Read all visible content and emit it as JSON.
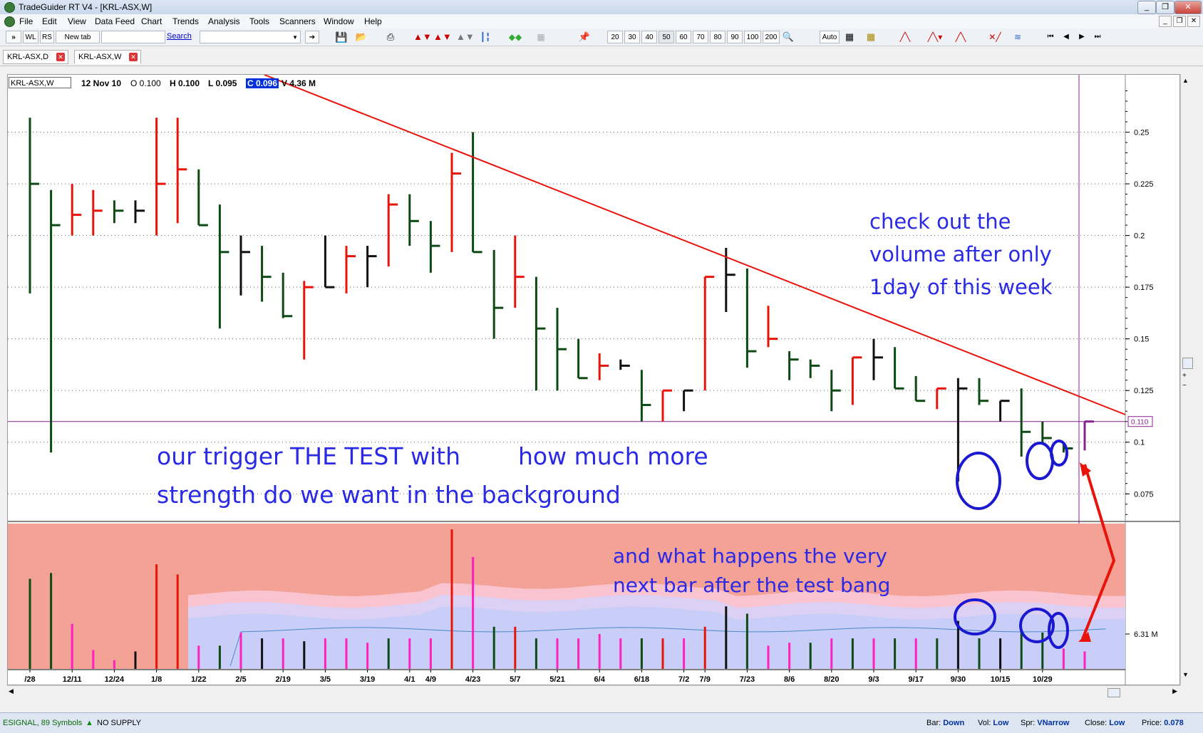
{
  "window": {
    "title": "TradeGuider RT V4  - [KRL-ASX,W]",
    "buttons": [
      "_",
      "❐",
      "✕"
    ],
    "mdi_buttons": [
      "_",
      "❐",
      "✕"
    ]
  },
  "menu": [
    "File",
    "Edit",
    "View",
    "Data Feed",
    "Chart",
    "Trends",
    "Analysis",
    "Tools",
    "Scanners",
    "Window",
    "Help"
  ],
  "toolbar": {
    "left_buttons": [
      "»",
      "WL",
      "RS",
      "New tab"
    ],
    "search_label": "Search",
    "zoom_buttons": [
      "20",
      "30",
      "40",
      "50",
      "60",
      "70",
      "80",
      "90",
      "100",
      "200"
    ],
    "auto_label": "Auto"
  },
  "tabs": [
    {
      "label": "KRL-ASX,D"
    },
    {
      "label": "KRL-ASX,W"
    }
  ],
  "chart_header": {
    "symbol": "KRL-ASX,W",
    "date": "12 Nov 10",
    "open": "O 0.100",
    "high": "H 0.100",
    "low": "L 0.095",
    "close": "C 0.096",
    "volume": "V 4.36 M"
  },
  "annotations": {
    "note1_line1": "check out the",
    "note1_line2": "volume after only",
    "note1_line3": "1day of this week",
    "note2_line1": "our trigger THE TEST with",
    "note2_line1b": "how much more",
    "note2_line2": "strength do we want in the background",
    "note3_line1": "and what happens the very",
    "note3_line2": "next bar after the test bang"
  },
  "price_label": "0.110",
  "volume_axis_label": "6.31 M",
  "colors": {
    "up": "#0d4a14",
    "down": "#e8140c",
    "neutral": "#111111",
    "volume_bg": "#f4a196",
    "trendline": "#e8140c",
    "annotation": "#2a2ae6"
  },
  "chart_data": {
    "type": "ohlc",
    "price_ticks": [
      "0.25",
      "0.225",
      "0.2",
      "0.175",
      "0.15",
      "0.125",
      "0.1",
      "0.075"
    ],
    "x_ticks": [
      "/28",
      "12/11",
      "12/24",
      "1/8",
      "1/22",
      "2/5",
      "2/19",
      "3/5",
      "3/19",
      "4/1",
      "4/9",
      "4/23",
      "5/7",
      "5/21",
      "6/4",
      "6/18",
      "7/2",
      "7/9",
      "7/23",
      "8/6",
      "8/20",
      "9/3",
      "9/17",
      "9/30",
      "10/15",
      "10/29"
    ],
    "ylim": [
      0.062,
      0.275
    ],
    "bars": [
      {
        "h": 0.257,
        "l": 0.172,
        "c": 0.225,
        "d": "u"
      },
      {
        "h": 0.222,
        "l": 0.095,
        "c": 0.205,
        "d": "u"
      },
      {
        "h": 0.225,
        "l": 0.2,
        "c": 0.21,
        "d": "d"
      },
      {
        "h": 0.222,
        "l": 0.2,
        "c": 0.212,
        "d": "d"
      },
      {
        "h": 0.217,
        "l": 0.206,
        "c": 0.212,
        "d": "u"
      },
      {
        "h": 0.217,
        "l": 0.206,
        "c": 0.212,
        "d": "n"
      },
      {
        "h": 0.257,
        "l": 0.2,
        "c": 0.225,
        "d": "d"
      },
      {
        "h": 0.257,
        "l": 0.206,
        "c": 0.232,
        "d": "d"
      },
      {
        "h": 0.232,
        "l": 0.205,
        "c": 0.205,
        "d": "u"
      },
      {
        "h": 0.215,
        "l": 0.155,
        "c": 0.192,
        "d": "u"
      },
      {
        "h": 0.2,
        "l": 0.171,
        "c": 0.192,
        "d": "n"
      },
      {
        "h": 0.195,
        "l": 0.168,
        "c": 0.18,
        "d": "u"
      },
      {
        "h": 0.182,
        "l": 0.16,
        "c": 0.161,
        "d": "u"
      },
      {
        "h": 0.178,
        "l": 0.14,
        "c": 0.175,
        "d": "d"
      },
      {
        "h": 0.2,
        "l": 0.175,
        "c": 0.175,
        "d": "n"
      },
      {
        "h": 0.195,
        "l": 0.172,
        "c": 0.19,
        "d": "d"
      },
      {
        "h": 0.195,
        "l": 0.175,
        "c": 0.19,
        "d": "n"
      },
      {
        "h": 0.22,
        "l": 0.185,
        "c": 0.215,
        "d": "d"
      },
      {
        "h": 0.22,
        "l": 0.195,
        "c": 0.207,
        "d": "u"
      },
      {
        "h": 0.207,
        "l": 0.182,
        "c": 0.195,
        "d": "u"
      },
      {
        "h": 0.24,
        "l": 0.192,
        "c": 0.23,
        "d": "d"
      },
      {
        "h": 0.25,
        "l": 0.192,
        "c": 0.192,
        "d": "u"
      },
      {
        "h": 0.193,
        "l": 0.15,
        "c": 0.165,
        "d": "u"
      },
      {
        "h": 0.2,
        "l": 0.165,
        "c": 0.18,
        "d": "d"
      },
      {
        "h": 0.18,
        "l": 0.125,
        "c": 0.155,
        "d": "u"
      },
      {
        "h": 0.165,
        "l": 0.125,
        "c": 0.145,
        "d": "u"
      },
      {
        "h": 0.15,
        "l": 0.131,
        "c": 0.131,
        "d": "u"
      },
      {
        "h": 0.143,
        "l": 0.13,
        "c": 0.137,
        "d": "d"
      },
      {
        "h": 0.14,
        "l": 0.135,
        "c": 0.137,
        "d": "n"
      },
      {
        "h": 0.135,
        "l": 0.11,
        "c": 0.118,
        "d": "u"
      },
      {
        "h": 0.125,
        "l": 0.11,
        "c": 0.125,
        "d": "d"
      },
      {
        "h": 0.125,
        "l": 0.115,
        "c": 0.125,
        "d": "n"
      },
      {
        "h": 0.18,
        "l": 0.125,
        "c": 0.18,
        "d": "d"
      },
      {
        "h": 0.194,
        "l": 0.163,
        "c": 0.181,
        "d": "n"
      },
      {
        "h": 0.184,
        "l": 0.136,
        "c": 0.144,
        "d": "u"
      },
      {
        "h": 0.166,
        "l": 0.146,
        "c": 0.15,
        "d": "d"
      },
      {
        "h": 0.144,
        "l": 0.13,
        "c": 0.14,
        "d": "u"
      },
      {
        "h": 0.14,
        "l": 0.131,
        "c": 0.137,
        "d": "u"
      },
      {
        "h": 0.135,
        "l": 0.115,
        "c": 0.125,
        "d": "u"
      },
      {
        "h": 0.141,
        "l": 0.118,
        "c": 0.141,
        "d": "d"
      },
      {
        "h": 0.15,
        "l": 0.13,
        "c": 0.141,
        "d": "n"
      },
      {
        "h": 0.146,
        "l": 0.126,
        "c": 0.126,
        "d": "u"
      },
      {
        "h": 0.132,
        "l": 0.12,
        "c": 0.12,
        "d": "u"
      },
      {
        "h": 0.126,
        "l": 0.116,
        "c": 0.126,
        "d": "d"
      },
      {
        "h": 0.131,
        "l": 0.081,
        "c": 0.126,
        "d": "n"
      },
      {
        "h": 0.131,
        "l": 0.118,
        "c": 0.12,
        "d": "u"
      },
      {
        "h": 0.12,
        "l": 0.11,
        "c": 0.12,
        "d": "n"
      },
      {
        "h": 0.126,
        "l": 0.093,
        "c": 0.105,
        "d": "u"
      },
      {
        "h": 0.11,
        "l": 0.099,
        "c": 0.102,
        "d": "u"
      },
      {
        "h": 0.099,
        "l": 0.095,
        "c": 0.097,
        "d": "u"
      },
      {
        "h": 0.11,
        "l": 0.096,
        "c": 0.11,
        "d": "p"
      }
    ],
    "volume_colors": [
      "u",
      "u",
      "m",
      "m",
      "m",
      "n",
      "d",
      "d",
      "m",
      "u",
      "m",
      "n",
      "m",
      "n",
      "m",
      "m",
      "m",
      "u",
      "m",
      "m",
      "d",
      "m",
      "u",
      "d",
      "u",
      "m",
      "m",
      "m",
      "m",
      "u",
      "d",
      "m",
      "d",
      "n",
      "u",
      "m",
      "m",
      "u",
      "m",
      "u",
      "m",
      "u",
      "m",
      "u",
      "n",
      "u",
      "n",
      "u",
      "u",
      "m",
      "m"
    ],
    "volume_heights": [
      0.62,
      0.66,
      0.31,
      0.13,
      0.06,
      0.12,
      0.72,
      0.65,
      0.16,
      0.16,
      0.25,
      0.21,
      0.21,
      0.19,
      0.21,
      0.21,
      0.18,
      0.21,
      0.21,
      0.21,
      0.96,
      0.77,
      0.29,
      0.29,
      0.21,
      0.21,
      0.21,
      0.24,
      0.21,
      0.21,
      0.21,
      0.21,
      0.29,
      0.43,
      0.38,
      0.16,
      0.18,
      0.18,
      0.21,
      0.21,
      0.21,
      0.21,
      0.21,
      0.21,
      0.33,
      0.21,
      0.21,
      0.26,
      0.25,
      0.14,
      0.12
    ]
  }
}
